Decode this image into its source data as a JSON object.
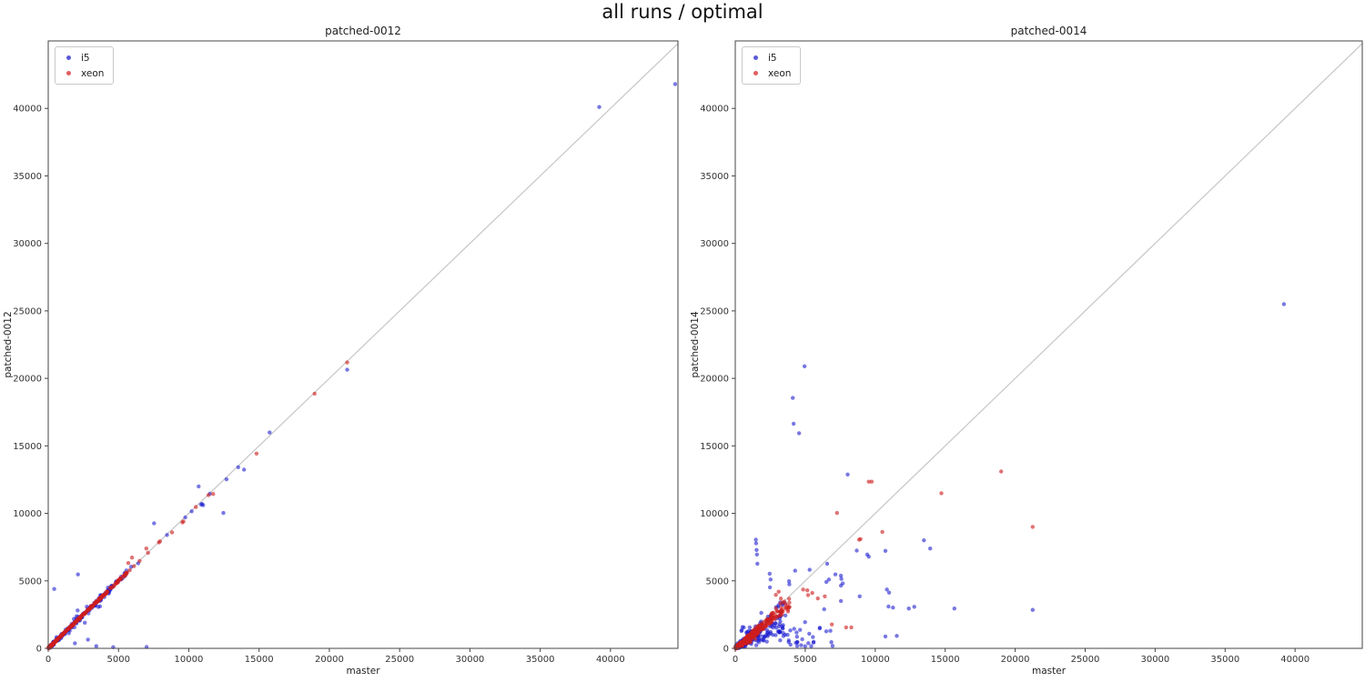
{
  "suptitle": "all runs / optimal",
  "chart_data": [
    {
      "type": "scatter",
      "title": "patched-0012",
      "xlabel": "master",
      "ylabel": "patched-0012",
      "xlim": [
        0,
        44800
      ],
      "ylim": [
        0,
        45000
      ],
      "xticks": [
        0,
        5000,
        10000,
        15000,
        20000,
        25000,
        30000,
        35000,
        40000
      ],
      "yticks": [
        0,
        5000,
        10000,
        15000,
        20000,
        25000,
        30000,
        35000,
        40000
      ],
      "grid": false,
      "identity_line": {
        "show": true,
        "color": "#c6c6c6"
      },
      "legend": [
        {
          "label": "i5",
          "color": "#5b5bd8"
        },
        {
          "label": "xeon",
          "color": "#e05e5e"
        }
      ],
      "series": [
        {
          "name": "i5",
          "color": "#1616cf",
          "opacity": 0.58,
          "points": [
            [
              430,
              4400
            ],
            [
              2120,
              5480
            ],
            [
              1900,
              380
            ],
            [
              2830,
              650
            ],
            [
              3420,
              160
            ],
            [
              4620,
              90
            ],
            [
              2600,
              1900
            ],
            [
              2090,
              2810
            ],
            [
              7000,
              100
            ],
            [
              5900,
              6050
            ],
            [
              6400,
              6300
            ],
            [
              7530,
              9260
            ],
            [
              8450,
              8400
            ],
            [
              9750,
              9700
            ],
            [
              10200,
              10150
            ],
            [
              10700,
              12000
            ],
            [
              10870,
              10660
            ],
            [
              10950,
              10700
            ],
            [
              11020,
              10600
            ],
            [
              11500,
              11450
            ],
            [
              12460,
              10030
            ],
            [
              12680,
              12520
            ],
            [
              13520,
              13420
            ],
            [
              13930,
              13240
            ],
            [
              15750,
              15990
            ],
            [
              21270,
              20640
            ],
            [
              39200,
              40100
            ],
            [
              44600,
              41800
            ]
          ],
          "clusters": [
            {
              "kind": "fan",
              "x_min": 30,
              "x_max": 5600,
              "count": 150,
              "slope_min": 0.97,
              "slope_max": 1.03,
              "jitter": 150,
              "bias": 1.6,
              "seed": 3
            },
            {
              "kind": "fan",
              "x_min": 300,
              "x_max": 5200,
              "count": 28,
              "slope_min": 0.85,
              "slope_max": 1.12,
              "jitter": 350,
              "bias": 1.2,
              "seed": 11
            }
          ]
        },
        {
          "name": "xeon",
          "color": "#cf1d1d",
          "opacity": 0.62,
          "points": [
            [
              5700,
              6320
            ],
            [
              5960,
              6720
            ],
            [
              6980,
              7400
            ],
            [
              5800,
              5790
            ],
            [
              6100,
              6090
            ],
            [
              6500,
              6480
            ],
            [
              7100,
              7080
            ],
            [
              7870,
              7850
            ],
            [
              7950,
              7930
            ],
            [
              8810,
              8590
            ],
            [
              9540,
              9330
            ],
            [
              9620,
              9400
            ],
            [
              10500,
              10470
            ],
            [
              11400,
              11350
            ],
            [
              11730,
              11440
            ],
            [
              14820,
              14430
            ],
            [
              18950,
              18870
            ],
            [
              21270,
              21180
            ]
          ],
          "clusters": [
            {
              "kind": "fan",
              "x_min": 30,
              "x_max": 5600,
              "count": 260,
              "slope_min": 0.99,
              "slope_max": 1.01,
              "jitter": 60,
              "bias": 1.6,
              "seed": 7
            }
          ]
        }
      ]
    },
    {
      "type": "scatter",
      "title": "patched-0014",
      "xlabel": "master",
      "ylabel": "patched-0014",
      "xlim": [
        0,
        44800
      ],
      "ylim": [
        0,
        45000
      ],
      "xticks": [
        0,
        5000,
        10000,
        15000,
        20000,
        25000,
        30000,
        35000,
        40000
      ],
      "yticks": [
        0,
        5000,
        10000,
        15000,
        20000,
        25000,
        30000,
        35000,
        40000
      ],
      "grid": false,
      "identity_line": {
        "show": true,
        "color": "#c6c6c6"
      },
      "legend": [
        {
          "label": "i5",
          "color": "#5b5bd8"
        },
        {
          "label": "xeon",
          "color": "#e05e5e"
        }
      ],
      "series": [
        {
          "name": "i5",
          "color": "#1616cf",
          "opacity": 0.58,
          "points": [
            [
              1470,
              8050
            ],
            [
              1490,
              7780
            ],
            [
              1520,
              7290
            ],
            [
              1550,
              6950
            ],
            [
              1580,
              6270
            ],
            [
              4950,
              20900
            ],
            [
              4110,
              18550
            ],
            [
              4170,
              16640
            ],
            [
              4560,
              15940
            ],
            [
              1860,
              2630
            ],
            [
              2460,
              5530
            ],
            [
              2520,
              5100
            ],
            [
              2480,
              4520
            ],
            [
              4280,
              5750
            ],
            [
              3840,
              4970
            ],
            [
              3860,
              4740
            ],
            [
              5310,
              5820
            ],
            [
              6570,
              6270
            ],
            [
              6350,
              2900
            ],
            [
              4990,
              1940
            ],
            [
              6510,
              4920
            ],
            [
              6690,
              5100
            ],
            [
              7150,
              5480
            ],
            [
              7550,
              5380
            ],
            [
              7580,
              5150
            ],
            [
              7550,
              4650
            ],
            [
              7680,
              4810
            ],
            [
              7550,
              3510
            ],
            [
              8680,
              7240
            ],
            [
              8890,
              3850
            ],
            [
              9430,
              6950
            ],
            [
              9540,
              6790
            ],
            [
              10730,
              7220
            ],
            [
              10830,
              4360
            ],
            [
              10990,
              4130
            ],
            [
              10950,
              3100
            ],
            [
              11270,
              3020
            ],
            [
              12400,
              2950
            ],
            [
              12790,
              3080
            ],
            [
              10730,
              880
            ],
            [
              11540,
              920
            ],
            [
              13480,
              8000
            ],
            [
              13930,
              7400
            ],
            [
              8030,
              12880
            ],
            [
              15660,
              2950
            ],
            [
              21250,
              2850
            ],
            [
              39200,
              25500
            ]
          ],
          "clusters": [
            {
              "kind": "fan",
              "x_min": 30,
              "x_max": 3600,
              "count": 170,
              "slope_min": 0.3,
              "slope_max": 1.05,
              "jitter": 250,
              "bias": 1.4,
              "seed": 17
            },
            {
              "kind": "fan",
              "x_min": 30,
              "x_max": 1300,
              "count": 90,
              "slope_min": 0.4,
              "slope_max": 1.1,
              "jitter": 150,
              "bias": 1.4,
              "seed": 29
            },
            {
              "kind": "blob",
              "x_min": 300,
              "x_max": 7000,
              "y_min": 150,
              "y_max": 1600,
              "count": 55,
              "bias": 1.4,
              "seed": 23
            }
          ]
        },
        {
          "name": "xeon",
          "color": "#cf1d1d",
          "opacity": 0.62,
          "points": [
            [
              4850,
              4360
            ],
            [
              5150,
              4300
            ],
            [
              5500,
              4100
            ],
            [
              5900,
              3700
            ],
            [
              5200,
              3950
            ],
            [
              6400,
              3850
            ],
            [
              6900,
              1770
            ],
            [
              7920,
              1550
            ],
            [
              8290,
              1550
            ],
            [
              8850,
              8050
            ],
            [
              8950,
              8100
            ],
            [
              10510,
              8630
            ],
            [
              7270,
              10030
            ],
            [
              9540,
              12345
            ],
            [
              9750,
              12345
            ],
            [
              14730,
              11490
            ],
            [
              19000,
              13100
            ],
            [
              21250,
              9000
            ],
            [
              2900,
              3960
            ],
            [
              3260,
              3690
            ],
            [
              3100,
              4200
            ]
          ],
          "clusters": [
            {
              "kind": "fan",
              "x_min": 30,
              "x_max": 3900,
              "count": 240,
              "slope_min": 0.72,
              "slope_max": 1.02,
              "jitter": 100,
              "bias": 1.6,
              "seed": 5
            },
            {
              "kind": "fan",
              "x_min": 30,
              "x_max": 1600,
              "count": 130,
              "slope_min": 0.5,
              "slope_max": 1.05,
              "jitter": 120,
              "bias": 1.3,
              "seed": 13
            }
          ]
        }
      ]
    }
  ]
}
